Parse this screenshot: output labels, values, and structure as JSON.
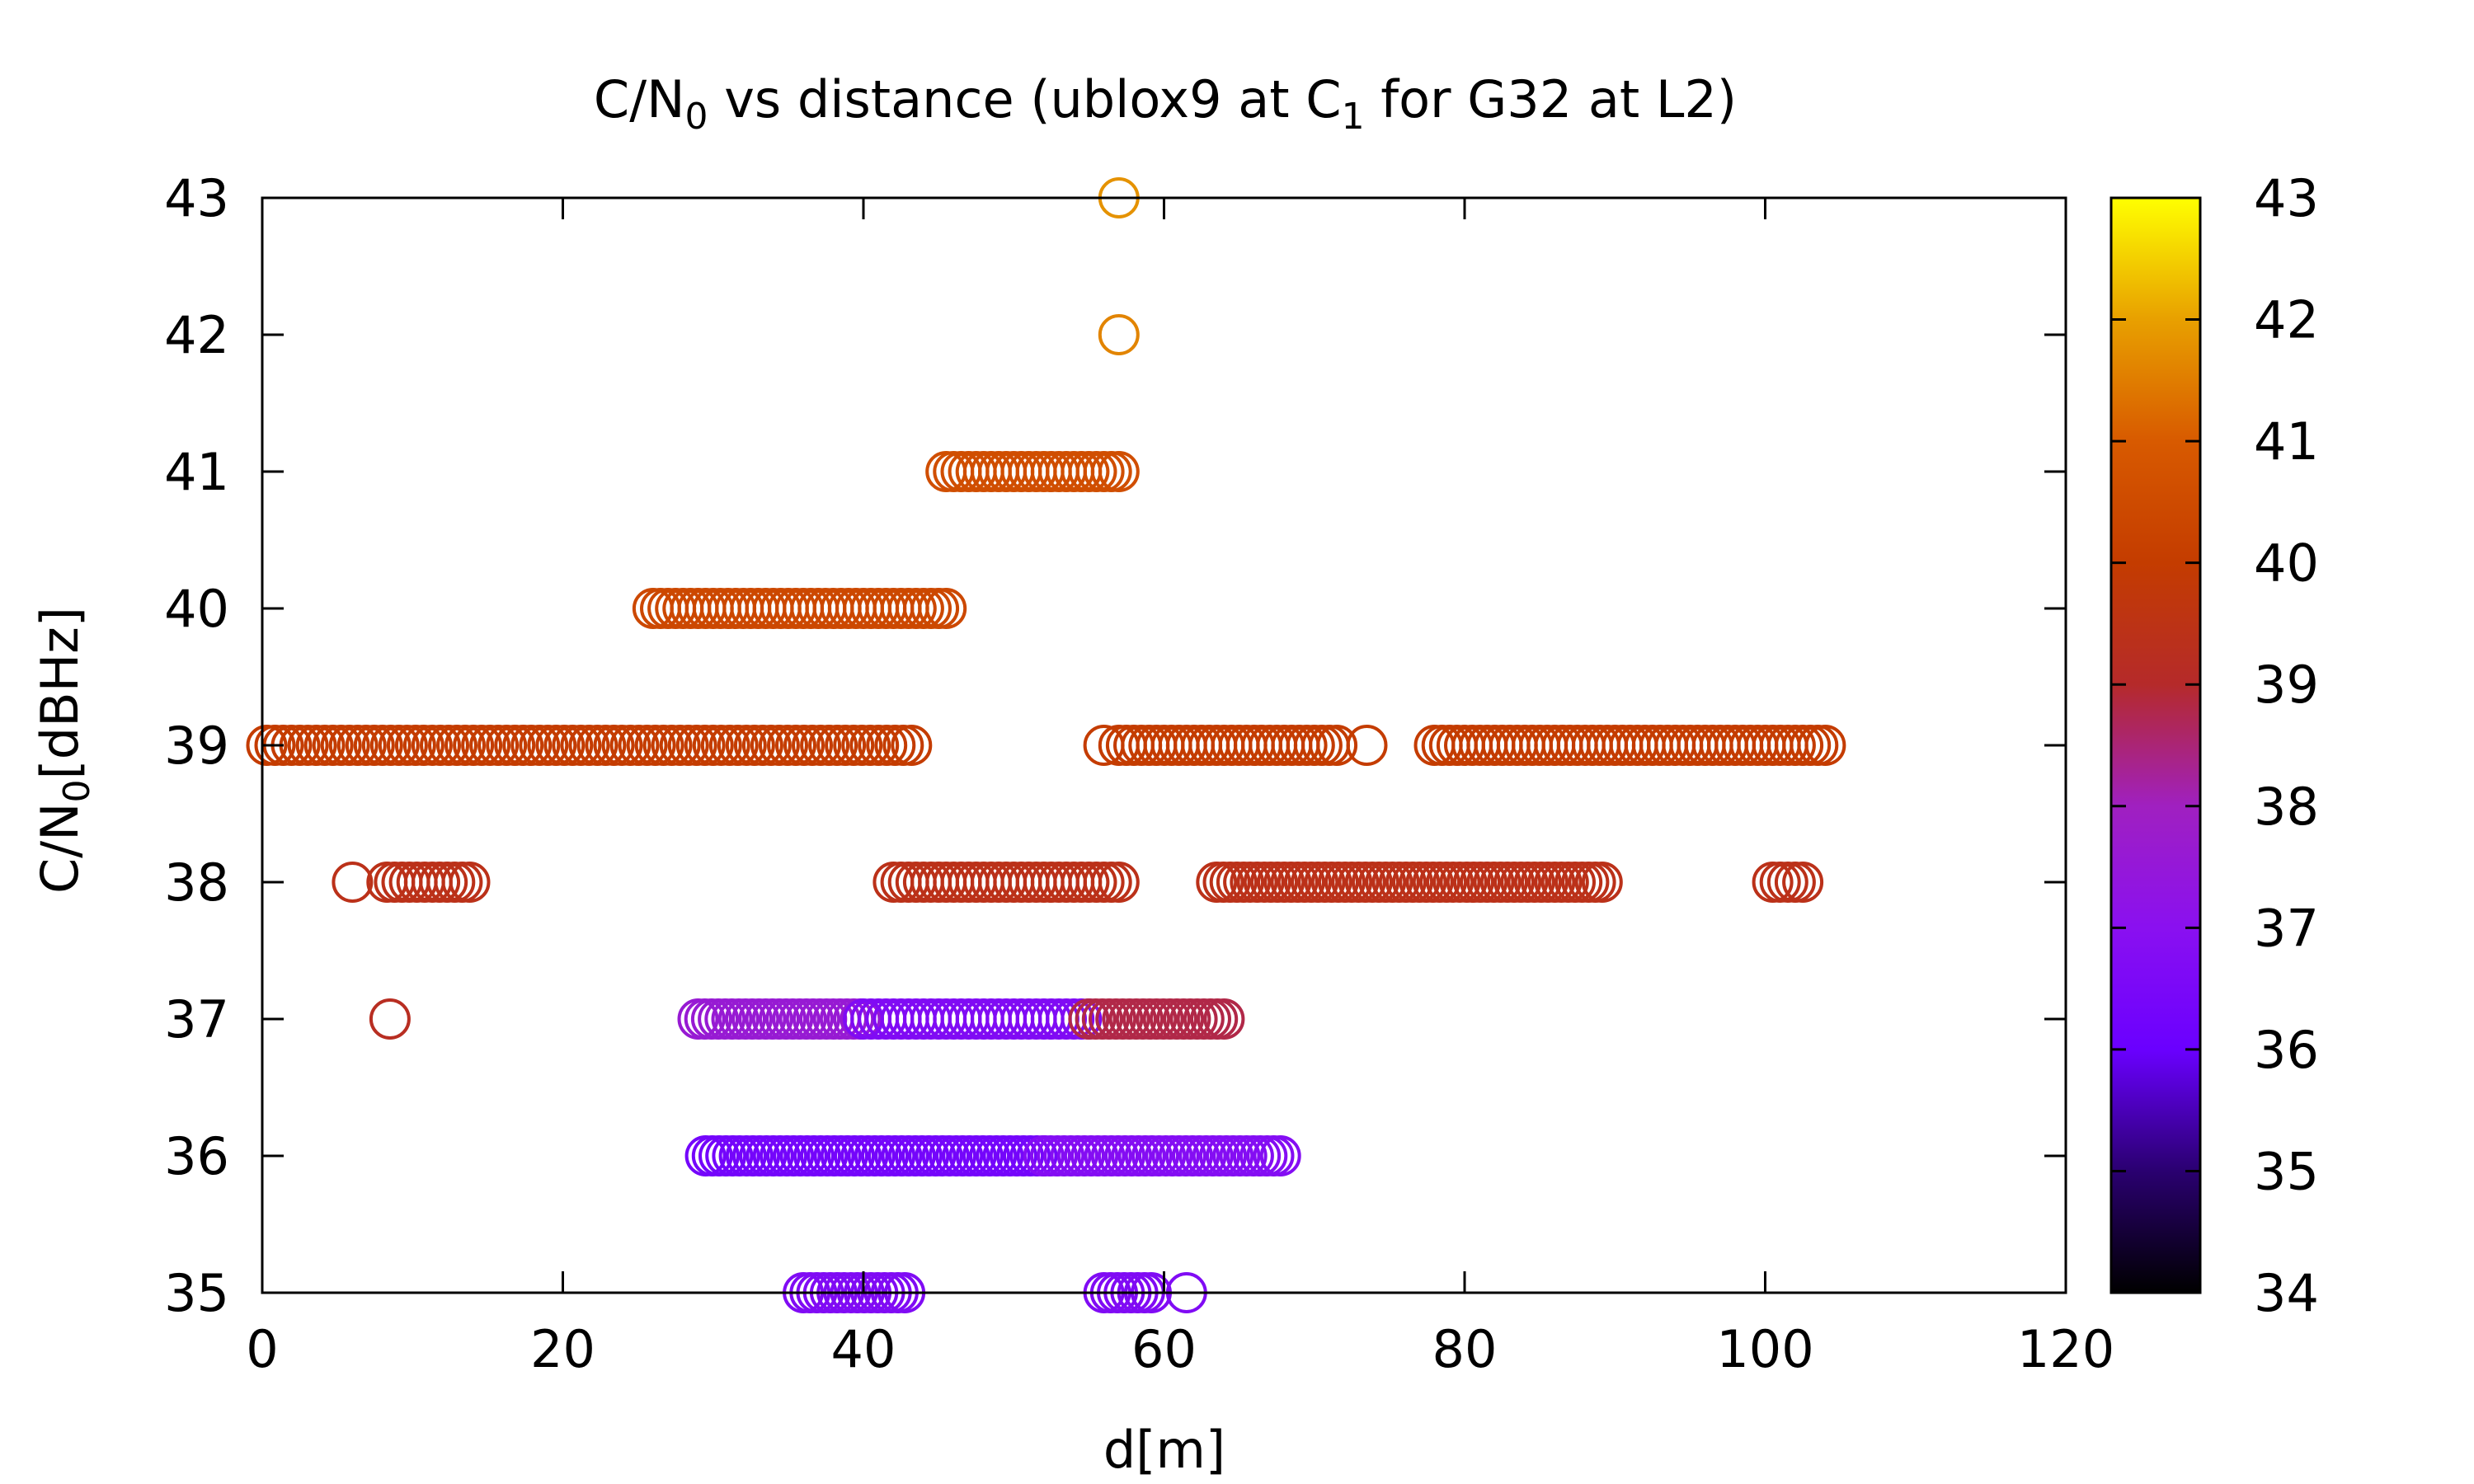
{
  "chart_data": {
    "type": "scatter",
    "title": "C/N0 vs distance (ublox9 at C1 for G32 at L2)",
    "title_parts": {
      "lead": "C/N",
      "sub1": "0",
      "middle": " vs distance (ublox9 at C",
      "sub2": "1",
      "tail": " for G32 at L2)"
    },
    "xlabel": "d[m]",
    "ylabel_parts": {
      "lead": "C/N",
      "sub": "0",
      "tail": "[dBHz]"
    },
    "xlim": [
      0,
      120
    ],
    "ylim": [
      35,
      43
    ],
    "xticks": [
      0,
      20,
      40,
      60,
      80,
      100,
      120
    ],
    "yticks": [
      35,
      36,
      37,
      38,
      39,
      40,
      41,
      42,
      43
    ],
    "colorbar": {
      "range": [
        34,
        43
      ],
      "ticks": [
        34,
        35,
        36,
        37,
        38,
        39,
        40,
        41,
        42,
        43
      ],
      "palette": [
        "#000000",
        "#2a0070",
        "#6a00ff",
        "#8a10f0",
        "#a020c0",
        "#b52a2a",
        "#c43c00",
        "#d85a00",
        "#e8a000",
        "#ffff00"
      ]
    },
    "grid": false,
    "marker": "open-circle",
    "series": [
      {
        "y": 43,
        "c": 41.8,
        "ranges": [],
        "x": [
          57
        ]
      },
      {
        "y": 42,
        "c": 41.6,
        "ranges": [],
        "x": [
          57
        ]
      },
      {
        "y": 41,
        "c": 40.6,
        "ranges": [
          [
            45.5,
            57,
            0.5
          ]
        ],
        "x": []
      },
      {
        "y": 40,
        "c": 40.4,
        "ranges": [
          [
            26,
            45.5,
            0.5
          ]
        ],
        "x": []
      },
      {
        "y": 39,
        "c": 40.0,
        "ranges": [
          [
            0.3,
            43.5,
            0.55
          ],
          [
            57,
            71.5,
            0.5
          ],
          [
            78,
            104,
            0.5
          ]
        ],
        "x": [
          56,
          73.5
        ]
      },
      {
        "y": 38,
        "c": 39.4,
        "ranges": [
          [
            8.3,
            14,
            0.5
          ],
          [
            42,
            57,
            0.5
          ],
          [
            63.5,
            89.5,
            0.45
          ],
          [
            100.5,
            102.5,
            0.5
          ]
        ],
        "x": [
          6
        ]
      },
      {
        "y": 37,
        "c": 39.2,
        "ranges": [],
        "x": [
          8.5
        ]
      },
      {
        "y": 37,
        "c": 37.6,
        "ranges": [
          [
            29,
            40,
            0.45
          ]
        ],
        "x": []
      },
      {
        "y": 37,
        "c": 36.7,
        "ranges": [
          [
            40,
            55,
            0.5
          ]
        ],
        "x": []
      },
      {
        "y": 37,
        "c": 38.8,
        "ranges": [
          [
            55,
            64,
            0.45
          ]
        ],
        "x": []
      },
      {
        "y": 36,
        "c": 36.3,
        "ranges": [
          [
            29.5,
            52,
            0.45
          ]
        ],
        "x": []
      },
      {
        "y": 36,
        "c": 36.8,
        "ranges": [
          [
            52,
            68,
            0.45
          ]
        ],
        "x": []
      },
      {
        "y": 35,
        "c": 36.7,
        "ranges": [
          [
            36,
            43,
            0.45
          ],
          [
            56,
            59.5,
            0.45
          ]
        ],
        "x": [
          61.5
        ]
      }
    ]
  }
}
